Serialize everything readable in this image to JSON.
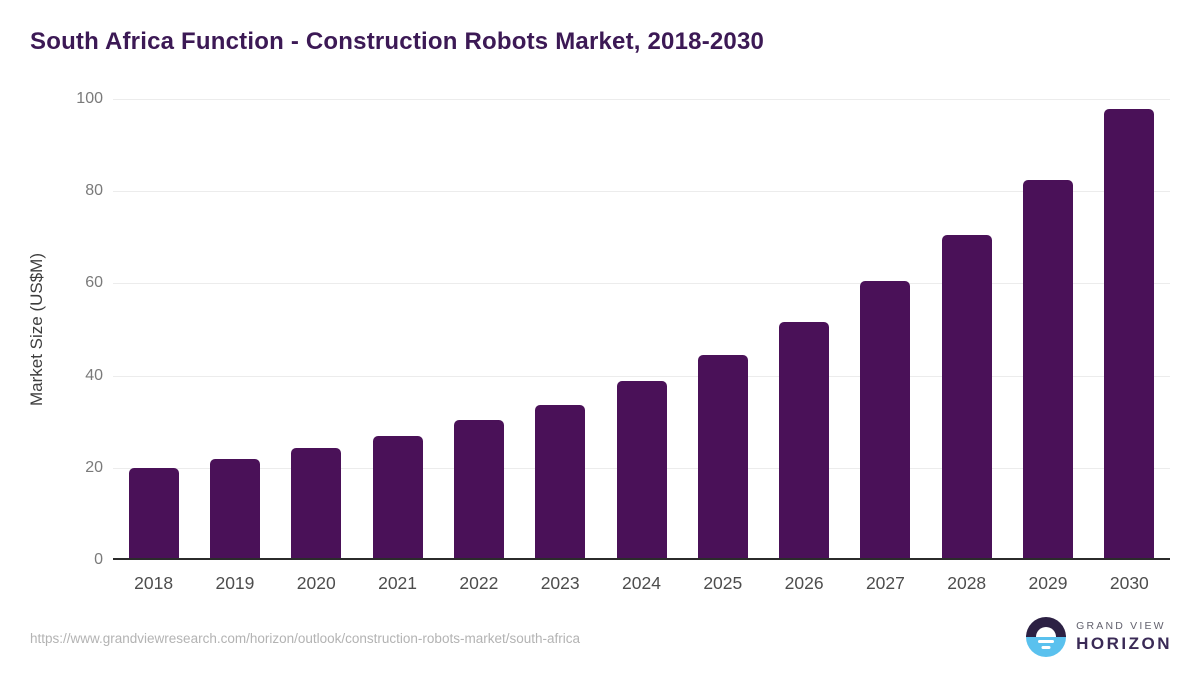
{
  "title": "South Africa Function - Construction Robots Market, 2018-2030",
  "source_url": "https://www.grandviewresearch.com/horizon/outlook/construction-robots-market/south-africa",
  "logo": {
    "line1": "GRAND VIEW",
    "line2": "HORIZON",
    "mark_top_color": "#2c2043",
    "mark_bottom_color": "#5ac1ee"
  },
  "colors": {
    "bar": "#4a1158",
    "title": "#3c1955",
    "gridline": "#ececec",
    "axis_line": "#2b2b2b",
    "y_tick_label": "#7a7a7a",
    "x_label": "#4d4d4d",
    "background": "#ffffff"
  },
  "chart_data": {
    "type": "bar",
    "title": "South Africa Function - Construction Robots Market, 2018-2030",
    "categories": [
      "2018",
      "2019",
      "2020",
      "2021",
      "2022",
      "2023",
      "2024",
      "2025",
      "2026",
      "2027",
      "2028",
      "2029",
      "2030"
    ],
    "values": [
      19.5,
      21.4,
      23.8,
      26.4,
      29.9,
      33.2,
      38.4,
      44.1,
      51.3,
      60.1,
      70.1,
      82.0,
      97.5
    ],
    "xlabel": "",
    "ylabel": "Market Size (US$M)",
    "ylim": [
      0,
      100
    ],
    "yticks": [
      0,
      20,
      40,
      60,
      80,
      100
    ],
    "grid": "horizontal",
    "legend": "none",
    "bar_color": "#4a1158"
  }
}
